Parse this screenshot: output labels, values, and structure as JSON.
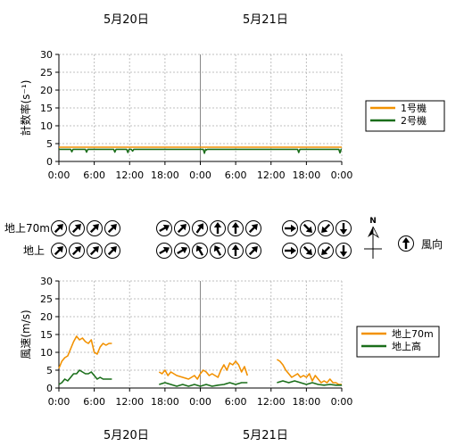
{
  "dates_top": [
    "5月20日",
    "5月21日"
  ],
  "dates_bottom": [
    "5月20日",
    "5月21日"
  ],
  "wind_panel": {
    "row_labels": [
      "地上70m",
      "地上"
    ],
    "legend_label": "風向",
    "north_label": "N"
  },
  "colors": {
    "orange": "#f29100",
    "green": "#1a6e1a",
    "grid": "#bfbfbf",
    "divider": "#888888"
  },
  "chart_data": [
    {
      "type": "line",
      "ylabel": "計数率(s⁻¹)",
      "ylim": [
        0,
        30
      ],
      "yticks": [
        0,
        5,
        10,
        15,
        20,
        25,
        30
      ],
      "xticks": [
        "0:00",
        "6:00",
        "12:00",
        "18:00",
        "0:00",
        "6:00",
        "12:00",
        "18:00",
        "0:00"
      ],
      "xlim_hours": [
        0,
        48
      ],
      "grid": true,
      "legend_position": "right",
      "series": [
        {
          "name": "1号機",
          "color": "#f29100",
          "points": [
            [
              0,
              4.0
            ],
            [
              2,
              4.0
            ],
            [
              4,
              4.0
            ],
            [
              6,
              4.0
            ],
            [
              8,
              4.0
            ],
            [
              10,
              4.0
            ],
            [
              12,
              4.0
            ],
            [
              14,
              4.0
            ],
            [
              16,
              4.0
            ],
            [
              18,
              4.0
            ],
            [
              20,
              4.0
            ],
            [
              22,
              4.0
            ],
            [
              24,
              4.0
            ],
            [
              26,
              4.0
            ],
            [
              28,
              4.0
            ],
            [
              30,
              4.0
            ],
            [
              32,
              4.0
            ],
            [
              34,
              4.0
            ],
            [
              36,
              4.0
            ],
            [
              38,
              4.0
            ],
            [
              40,
              4.0
            ],
            [
              42,
              4.0
            ],
            [
              44,
              4.0
            ],
            [
              46,
              4.0
            ],
            [
              48,
              4.0
            ]
          ]
        },
        {
          "name": "2号機",
          "color": "#1a6e1a",
          "points": [
            [
              0,
              3.4
            ],
            [
              2,
              3.4
            ],
            [
              2.2,
              2.7
            ],
            [
              2.4,
              3.4
            ],
            [
              4.5,
              3.4
            ],
            [
              4.7,
              2.6
            ],
            [
              4.9,
              3.4
            ],
            [
              9.3,
              3.4
            ],
            [
              9.5,
              2.6
            ],
            [
              9.7,
              3.4
            ],
            [
              11.5,
              3.4
            ],
            [
              11.7,
              2.5
            ],
            [
              11.9,
              3.4
            ],
            [
              12.3,
              3.4
            ],
            [
              12.5,
              2.9
            ],
            [
              12.7,
              3.4
            ],
            [
              24.5,
              3.4
            ],
            [
              24.7,
              2.3
            ],
            [
              24.9,
              3.4
            ],
            [
              25,
              3.2
            ],
            [
              25.2,
              3.4
            ],
            [
              40.5,
              3.4
            ],
            [
              40.7,
              2.5
            ],
            [
              40.9,
              3.4
            ],
            [
              47.5,
              3.4
            ],
            [
              47.7,
              2.4
            ],
            [
              47.9,
              3.4
            ],
            [
              48,
              3.4
            ]
          ]
        }
      ]
    },
    {
      "type": "line",
      "ylabel": "風速(m/s)",
      "ylim": [
        0,
        30
      ],
      "yticks": [
        0,
        5,
        10,
        15,
        20,
        25,
        30
      ],
      "xticks": [
        "0:00",
        "6:00",
        "12:00",
        "18:00",
        "0:00",
        "6:00",
        "12:00",
        "18:00",
        "0:00"
      ],
      "xlim_hours": [
        0,
        48
      ],
      "grid": true,
      "legend_position": "right",
      "series": [
        {
          "name": "地上70m",
          "color": "#f29100",
          "segments": [
            [
              [
                0,
                5.5
              ],
              [
                0.5,
                7.5
              ],
              [
                1,
                8.5
              ],
              [
                1.5,
                9
              ],
              [
                2,
                11
              ],
              [
                2.5,
                13
              ],
              [
                3,
                14.5
              ],
              [
                3.5,
                13.5
              ],
              [
                4,
                14
              ],
              [
                4.5,
                13
              ],
              [
                5,
                12.5
              ],
              [
                5.5,
                13.5
              ],
              [
                6,
                10
              ],
              [
                6.5,
                9.5
              ],
              [
                7,
                11.5
              ],
              [
                7.5,
                12.5
              ],
              [
                8,
                12
              ],
              [
                8.5,
                12.5
              ],
              [
                9,
                12.5
              ]
            ],
            [
              [
                17,
                4.5
              ],
              [
                17.5,
                4
              ],
              [
                18,
                5
              ],
              [
                18.5,
                3.5
              ],
              [
                19,
                4.5
              ],
              [
                20,
                3.5
              ],
              [
                21,
                3
              ],
              [
                22,
                2.5
              ],
              [
                23,
                3.5
              ],
              [
                23.5,
                2.5
              ],
              [
                24,
                4
              ],
              [
                24.5,
                5
              ],
              [
                25,
                4.5
              ],
              [
                25.5,
                3.5
              ],
              [
                26,
                4
              ],
              [
                27,
                3
              ],
              [
                27.5,
                5
              ],
              [
                28,
                6.5
              ],
              [
                28.5,
                5
              ],
              [
                29,
                7
              ],
              [
                29.5,
                6.5
              ],
              [
                30,
                7.5
              ],
              [
                30.5,
                6.5
              ],
              [
                31,
                4.5
              ],
              [
                31.5,
                6
              ],
              [
                32,
                3.5
              ]
            ],
            [
              [
                37,
                8
              ],
              [
                37.5,
                7.5
              ],
              [
                38,
                6.5
              ],
              [
                38.5,
                5
              ],
              [
                39,
                4
              ],
              [
                39.5,
                3
              ],
              [
                40,
                3.5
              ],
              [
                40.5,
                4
              ],
              [
                41,
                3
              ],
              [
                41.5,
                3.5
              ],
              [
                42,
                3
              ],
              [
                42.5,
                4
              ],
              [
                43,
                2
              ],
              [
                43.5,
                3.5
              ],
              [
                44,
                2.5
              ],
              [
                44.5,
                1.5
              ],
              [
                45,
                2
              ],
              [
                45.5,
                1.5
              ],
              [
                46,
                2.5
              ],
              [
                46.5,
                1.5
              ],
              [
                47,
                1.5
              ],
              [
                47.5,
                1
              ],
              [
                48,
                1
              ]
            ]
          ]
        },
        {
          "name": "地上高",
          "color": "#1a6e1a",
          "segments": [
            [
              [
                0,
                1
              ],
              [
                0.5,
                1.5
              ],
              [
                1,
                2.5
              ],
              [
                1.5,
                2
              ],
              [
                2,
                3
              ],
              [
                2.5,
                4
              ],
              [
                3,
                4
              ],
              [
                3.5,
                5
              ],
              [
                4,
                4.5
              ],
              [
                4.5,
                4
              ],
              [
                5,
                4
              ],
              [
                5.5,
                4.5
              ],
              [
                6,
                3.5
              ],
              [
                6.5,
                2.5
              ],
              [
                7,
                3
              ],
              [
                7.5,
                2.5
              ],
              [
                8,
                2.5
              ],
              [
                8.5,
                2.5
              ],
              [
                9,
                2.5
              ]
            ],
            [
              [
                17,
                1
              ],
              [
                18,
                1.5
              ],
              [
                19,
                1
              ],
              [
                20,
                0.5
              ],
              [
                21,
                1
              ],
              [
                22,
                0.5
              ],
              [
                23,
                1
              ],
              [
                24,
                0.5
              ],
              [
                25,
                1
              ],
              [
                26,
                0.5
              ],
              [
                27,
                0.8
              ],
              [
                28,
                1
              ],
              [
                29,
                1.5
              ],
              [
                30,
                1
              ],
              [
                31,
                1.5
              ],
              [
                32,
                1.5
              ]
            ],
            [
              [
                37,
                1.5
              ],
              [
                38,
                2
              ],
              [
                39,
                1.5
              ],
              [
                40,
                2
              ],
              [
                41,
                1.5
              ],
              [
                42,
                1
              ],
              [
                43,
                1.5
              ],
              [
                44,
                1
              ],
              [
                45,
                0.8
              ],
              [
                46,
                1
              ],
              [
                47,
                0.8
              ],
              [
                48,
                0.8
              ]
            ]
          ]
        }
      ]
    }
  ],
  "wind_arrows": {
    "groups_hours": [
      [
        0,
        3,
        6,
        9
      ],
      [
        16,
        19,
        22,
        25,
        28,
        31
      ],
      [
        38,
        41,
        44,
        47
      ]
    ],
    "upper": [
      [
        45,
        45,
        45,
        45
      ],
      [
        60,
        45,
        35,
        0,
        0,
        45
      ],
      [
        90,
        135,
        225,
        180
      ]
    ],
    "lower": [
      [
        45,
        45,
        45,
        45
      ],
      [
        60,
        60,
        330,
        330,
        0,
        45
      ],
      [
        90,
        135,
        225,
        180
      ]
    ]
  }
}
